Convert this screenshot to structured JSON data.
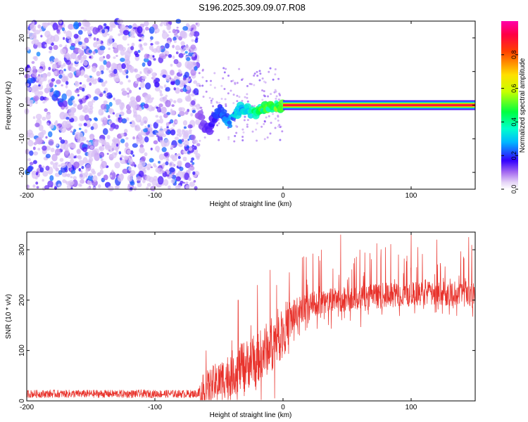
{
  "title": "S196.2025.309.09.07.R08",
  "colors": {
    "signal": "#e8312a",
    "frame": "#000000"
  },
  "chart_data": [
    {
      "type": "heatmap",
      "title": "S196.2025.309.09.07.R08",
      "xlabel": "Height of straight line (km)",
      "ylabel": "Frequency (Hz)",
      "xlim": [
        -200,
        150
      ],
      "ylim": [
        -25,
        25
      ],
      "xticks": [
        -200,
        -100,
        0,
        100
      ],
      "xtick_labels": [
        "-200",
        "-100",
        "0",
        "100"
      ],
      "yticks": [
        -20,
        -10,
        0,
        10,
        20
      ],
      "ytick_labels": [
        "-20",
        "-10",
        "0",
        "10",
        "20"
      ],
      "colorbar": {
        "label": "Normalized spectral amplitude",
        "range": [
          0,
          1
        ],
        "ticks": [
          0.0,
          0.2,
          0.4,
          0.6,
          0.8
        ],
        "tick_labels": [
          "0.0",
          "0.2",
          "0.4",
          "0.6",
          "0.8"
        ]
      },
      "regions": [
        {
          "name": "noise",
          "x_range": [
            -200,
            -66
          ],
          "freq_range": [
            -25,
            25
          ],
          "amplitude": [
            0.0,
            0.25
          ]
        },
        {
          "name": "onset",
          "x_range": [
            -66,
            0
          ],
          "freq_center": [
            -5,
            0
          ],
          "amplitude": [
            0.1,
            0.55
          ]
        },
        {
          "name": "tone",
          "x_range": [
            0,
            150
          ],
          "freq_center": 0,
          "amplitude": 1.0
        }
      ]
    },
    {
      "type": "line",
      "xlabel": "Height of straight line (km)",
      "ylabel": "SNR (10 * v/v)",
      "xlim": [
        -200,
        150
      ],
      "ylim": [
        0,
        335
      ],
      "xticks": [
        -200,
        -100,
        0,
        100
      ],
      "xtick_labels": [
        "-200",
        "-100",
        "0",
        "100"
      ],
      "yticks": [
        0,
        100,
        200,
        300
      ],
      "ytick_labels": [
        "0",
        "100",
        "200",
        "300"
      ],
      "series": [
        {
          "name": "SNR",
          "color": "#e8312a",
          "envelope_x": [
            -200,
            -67,
            -62,
            -50,
            -40,
            -30,
            -20,
            -10,
            0,
            10,
            20,
            40,
            60,
            80,
            100,
            120,
            150
          ],
          "envelope_base": [
            14,
            14,
            20,
            40,
            55,
            70,
            85,
            110,
            140,
            175,
            190,
            200,
            205,
            210,
            212,
            213,
            215
          ],
          "envelope_spread": [
            8,
            8,
            35,
            40,
            45,
            50,
            50,
            55,
            55,
            35,
            25,
            25,
            25,
            25,
            25,
            25,
            25
          ],
          "spike_x": [
            -60,
            -40,
            -35,
            -25,
            -20,
            -10,
            -5,
            5,
            15,
            30,
            45,
            60,
            80,
            100,
            120,
            145
          ],
          "spike_y": [
            100,
            120,
            200,
            150,
            230,
            260,
            230,
            255,
            285,
            300,
            330,
            300,
            305,
            330,
            320,
            325
          ]
        }
      ]
    }
  ]
}
